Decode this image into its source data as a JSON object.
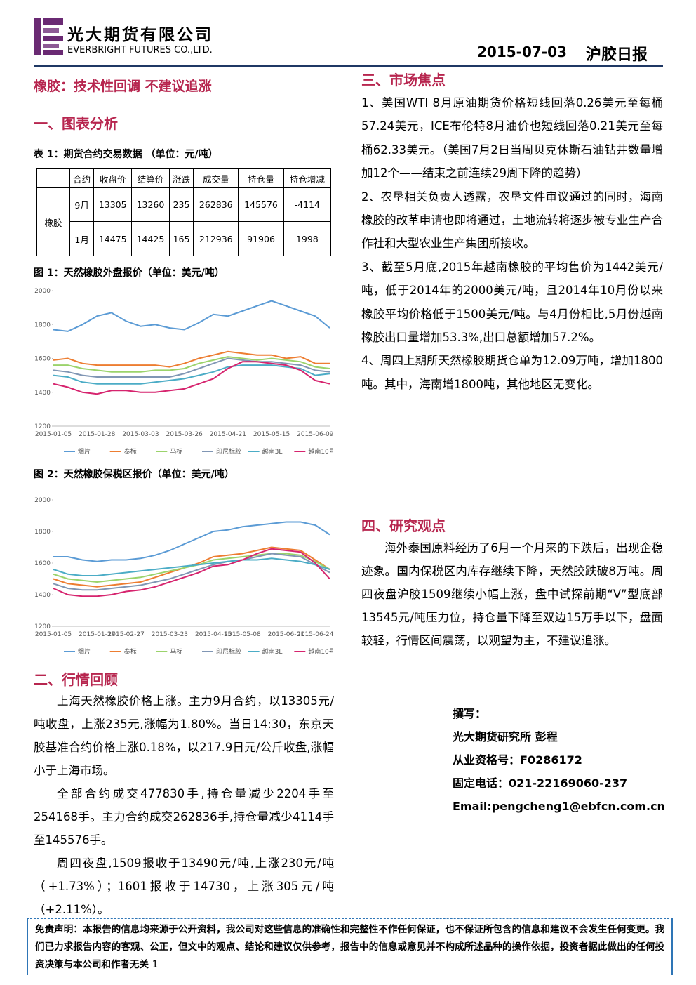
{
  "header": {
    "company_cn": "光大期货有限公司",
    "company_en": "EVERBRIGHT FUTURES CO.,LTD.",
    "date": "2015-07-03",
    "report": "沪胶日报"
  },
  "headline": "橡胶：技术性回调 不建议追涨",
  "section1": {
    "title": "一、图表分析",
    "table_caption": "表 1：期货合约交易数据 （单位：元/吨）",
    "table": {
      "columns": [
        "合约",
        "收盘价",
        "结算价",
        "涨跌",
        "成交量",
        "持仓量",
        "持仓增减"
      ],
      "row_group": "橡胶",
      "rows": [
        [
          "9月",
          13305,
          13260,
          235,
          262836,
          145576,
          -4114
        ],
        [
          "1月",
          14475,
          14425,
          165,
          212936,
          91906,
          1998
        ]
      ]
    }
  },
  "chart_data": [
    {
      "type": "line",
      "title": "图 1：天然橡胶外盘报价（单位：美元/吨）",
      "categories": [
        "2015-01-05",
        null,
        null,
        "2015-01-28",
        null,
        null,
        "2015-03-03",
        null,
        null,
        "2015-03-26",
        null,
        null,
        "2015-04-21",
        null,
        null,
        "2015-05-15",
        null,
        null,
        "2015-06-09",
        null
      ],
      "ylim": [
        1200,
        2000
      ],
      "yticks": [
        1200,
        1400,
        1600,
        1800,
        2000
      ],
      "legend": "bottom",
      "series": [
        {
          "name": "烟片",
          "color": "#5b9bd5",
          "values": [
            1770,
            1760,
            1800,
            1850,
            1870,
            1820,
            1790,
            1800,
            1780,
            1770,
            1810,
            1860,
            1850,
            1880,
            1910,
            1940,
            1910,
            1880,
            1850,
            1780
          ]
        },
        {
          "name": "泰标",
          "color": "#ed7d31",
          "values": [
            1590,
            1600,
            1570,
            1560,
            1560,
            1560,
            1560,
            1560,
            1550,
            1570,
            1600,
            1620,
            1640,
            1630,
            1620,
            1620,
            1600,
            1610,
            1570,
            1570
          ]
        },
        {
          "name": "马标",
          "color": "#9bd36b",
          "values": [
            1560,
            1560,
            1540,
            1530,
            1520,
            1520,
            1520,
            1530,
            1530,
            1540,
            1570,
            1590,
            1610,
            1600,
            1590,
            1600,
            1590,
            1580,
            1550,
            1540
          ]
        },
        {
          "name": "印尼标胶",
          "color": "#8096b4",
          "values": [
            1530,
            1520,
            1500,
            1490,
            1490,
            1490,
            1490,
            1490,
            1490,
            1510,
            1540,
            1570,
            1600,
            1590,
            1580,
            1580,
            1570,
            1560,
            1530,
            1520
          ]
        },
        {
          "name": "越南3L",
          "color": "#4bacc6",
          "values": [
            1500,
            1490,
            1460,
            1450,
            1450,
            1450,
            1450,
            1460,
            1470,
            1480,
            1500,
            1520,
            1550,
            1560,
            1560,
            1560,
            1550,
            1540,
            1500,
            1510
          ]
        },
        {
          "name": "越南10号",
          "color": "#d6246e",
          "values": [
            1450,
            1430,
            1400,
            1390,
            1410,
            1410,
            1400,
            1400,
            1410,
            1420,
            1450,
            1480,
            1540,
            1580,
            1580,
            1570,
            1560,
            1530,
            1470,
            1450
          ]
        }
      ]
    },
    {
      "type": "line",
      "title": "图 2：天然橡胶保税区报价（单位：美元/吨）",
      "categories": [
        "2015-01-05",
        null,
        null,
        "2015-01-27",
        null,
        "2015-02-27",
        null,
        null,
        "2015-03-23",
        null,
        null,
        "2015-04-15",
        null,
        "2015-05-08",
        null,
        null,
        "2015-06-01",
        null,
        "2015-06-24",
        null
      ],
      "ylim": [
        1200,
        2000
      ],
      "yticks": [
        1200,
        1400,
        1600,
        1800,
        2000
      ],
      "legend": "bottom",
      "series": [
        {
          "name": "烟片",
          "color": "#5b9bd5",
          "values": [
            1640,
            1640,
            1620,
            1610,
            1620,
            1620,
            1630,
            1650,
            1680,
            1720,
            1760,
            1800,
            1810,
            1830,
            1840,
            1850,
            1860,
            1860,
            1840,
            1780
          ]
        },
        {
          "name": "泰标",
          "color": "#ed7d31",
          "values": [
            1500,
            1470,
            1460,
            1450,
            1460,
            1470,
            1480,
            1510,
            1540,
            1570,
            1600,
            1640,
            1650,
            1660,
            1680,
            1700,
            1690,
            1680,
            1620,
            1560
          ]
        },
        {
          "name": "马标",
          "color": "#9bd36b",
          "values": [
            1530,
            1500,
            1490,
            1480,
            1490,
            1500,
            1510,
            1530,
            1550,
            1570,
            1590,
            1620,
            1630,
            1640,
            1650,
            1660,
            1660,
            1650,
            1610,
            1560
          ]
        },
        {
          "name": "印尼标胶",
          "color": "#8096b4",
          "values": [
            1470,
            1440,
            1430,
            1430,
            1440,
            1450,
            1460,
            1480,
            1500,
            1530,
            1560,
            1590,
            1610,
            1620,
            1640,
            1660,
            1650,
            1640,
            1590,
            1540
          ]
        },
        {
          "name": "越南3L",
          "color": "#4bacc6",
          "values": [
            1560,
            1530,
            1520,
            1520,
            1530,
            1540,
            1550,
            1560,
            1570,
            1580,
            1590,
            1600,
            1610,
            1620,
            1620,
            1630,
            1620,
            1610,
            1590,
            1560
          ]
        },
        {
          "name": "越南10号",
          "color": "#d6246e",
          "values": [
            1440,
            1400,
            1390,
            1390,
            1400,
            1420,
            1430,
            1450,
            1480,
            1510,
            1540,
            1580,
            1590,
            1620,
            1660,
            1690,
            1680,
            1670,
            1600,
            1500
          ]
        }
      ]
    }
  ],
  "section2": {
    "title": "二、行情回顾",
    "paragraphs": [
      "上海天然橡胶价格上涨。主力9月合约，以13305元/吨收盘，上涨235元,涨幅为1.80%。当日14:30，东京天胶基准合约价格上涨0.18%，以217.9日元/公斤收盘,涨幅小于上海市场。",
      "全部合约成交477830手,持仓量减少2204手至254168手。主力合约成交262836手,持仓量减少4114手至145576手。",
      "周四夜盘,1509报收于13490元/吨,上涨230元/吨（+1.73%）；1601报收于14730，上涨305元/吨（+2.11%）。"
    ]
  },
  "section3": {
    "title": "三、市场焦点",
    "paragraphs": [
      "1、美国WTI 8月原油期货价格短线回落0.26美元至每桶57.24美元，ICE布伦特8月油价也短线回落0.21美元至每桶62.33美元。（美国7月2日当周贝克休斯石油钻井数量增加12个——结束之前连续29周下降的趋势）",
      "2、农垦相关负责人透露，农垦文件审议通过的同时，海南橡胶的改革申请也即将通过，土地流转将逐步被专业生产合作社和大型农业生产集团所接收。",
      "3、截至5月底,2015年越南橡胶的平均售价为1442美元/吨，低于2014年的2000美元/吨，且2014年10月份以来橡胶平均价格低于1500美元/吨。与4月份相比,5月份越南橡胶出口量增加53.3%,出口总额增加57.2%。",
      "4、周四上期所天然橡胶期货仓单为12.09万吨，增加1800吨。其中，海南增1800吨，其他地区无变化。"
    ]
  },
  "section4": {
    "title": "四、研究观点",
    "paragraphs": [
      "海外泰国原料经历了6月一个月来的下跌后，出现企稳迹象。国内保税区内库存继续下降，天然胶跌破8万吨。周四夜盘沪胶1509继续小幅上涨，盘中试探前期“V”型底部13545元/吨压力位，持仓量下降至双边15万手以下，盘面较轻，行情区间震荡，以观望为主，不建议追涨。"
    ]
  },
  "author": [
    "撰写：",
    "光大期货研究所 彭程",
    "从业资格号：F0286172",
    "固定电话：021-22169060-237",
    "Email:pengcheng1@ebfcn.com.cn"
  ],
  "footer": {
    "disclaimer": "免责声明：本报告的信息均来源于公开资料，我公司对这些信息的准确性和完整性不作任何保证，也不保证所包含的信息和建议不会发生任何变更。我们已力求报告内容的客观、公正，但文中的观点、结论和建议仅供参考，报告中的信息或意见并不构成所述品种的操作依据，投资者据此做出的任何投资决策与本公司和作者无关",
    "page": "1"
  }
}
